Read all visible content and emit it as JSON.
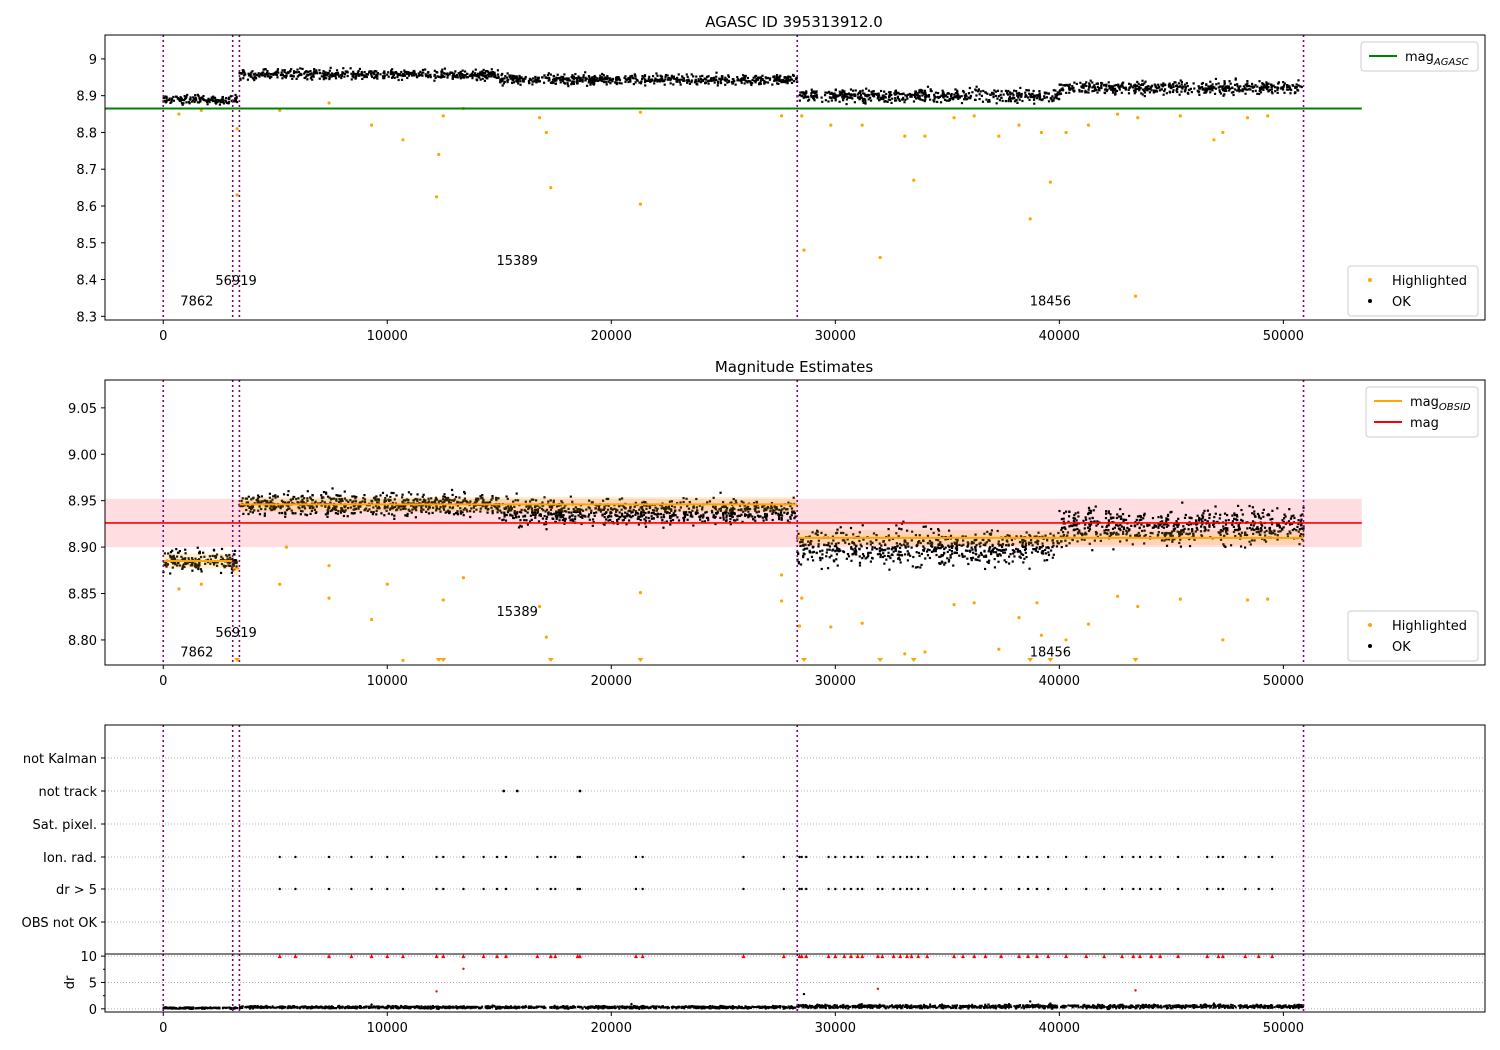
{
  "chart_data": [
    {
      "id": "top",
      "type": "scatter",
      "title": "AGASC ID 395313912.0",
      "xlim": [
        -2600,
        59000
      ],
      "ylim": [
        8.29,
        9.065
      ],
      "xticks": [
        0,
        10000,
        20000,
        30000,
        40000,
        50000
      ],
      "yticks": [
        8.3,
        8.4,
        8.5,
        8.6,
        8.7,
        8.8,
        8.9,
        9.0
      ],
      "grid": false,
      "obsid_boundaries": [
        0,
        3100,
        3400,
        28300,
        50900
      ],
      "obsid_labels": [
        {
          "text": "7862",
          "x": 1500,
          "y": 8.33
        },
        {
          "text": "56919",
          "x": 3250,
          "y": 8.385
        },
        {
          "text": "15389",
          "x": 15800,
          "y": 8.44
        },
        {
          "text": "18456",
          "x": 39600,
          "y": 8.33
        }
      ],
      "hlines": [
        {
          "name": "mag_AGASC",
          "y": 8.865,
          "x": [
            -2600,
            53500
          ],
          "color": "#008000"
        }
      ],
      "ok_segments": [
        {
          "x": [
            0,
            3300
          ],
          "center": 8.889,
          "spread": 0.012
        },
        {
          "x": [
            3400,
            15000
          ],
          "center": 8.958,
          "spread": 0.014
        },
        {
          "x": [
            15000,
            28300
          ],
          "center": 8.944,
          "spread": 0.014
        },
        {
          "x": [
            28300,
            40000
          ],
          "center": 8.9,
          "spread": 0.018
        },
        {
          "x": [
            40000,
            50900
          ],
          "center": 8.922,
          "spread": 0.018
        }
      ],
      "highlighted_points": [
        [
          700,
          8.85
        ],
        [
          1700,
          8.86
        ],
        [
          3300,
          8.81
        ],
        [
          3300,
          8.63
        ],
        [
          5200,
          8.86
        ],
        [
          7400,
          8.88
        ],
        [
          9300,
          8.82
        ],
        [
          10700,
          8.78
        ],
        [
          12200,
          8.625
        ],
        [
          12300,
          8.74
        ],
        [
          12500,
          8.845
        ],
        [
          13400,
          8.865
        ],
        [
          17100,
          8.8
        ],
        [
          17300,
          8.65
        ],
        [
          16800,
          8.84
        ],
        [
          21300,
          8.605
        ],
        [
          21300,
          8.855
        ],
        [
          27600,
          8.845
        ],
        [
          28600,
          8.48
        ],
        [
          28500,
          8.845
        ],
        [
          29800,
          8.82
        ],
        [
          31200,
          8.82
        ],
        [
          32000,
          8.46
        ],
        [
          33100,
          8.79
        ],
        [
          33500,
          8.67
        ],
        [
          34000,
          8.79
        ],
        [
          35300,
          8.84
        ],
        [
          36200,
          8.845
        ],
        [
          37300,
          8.79
        ],
        [
          38200,
          8.82
        ],
        [
          38700,
          8.565
        ],
        [
          39200,
          8.8
        ],
        [
          39600,
          8.665
        ],
        [
          40300,
          8.8
        ],
        [
          41300,
          8.82
        ],
        [
          42600,
          8.85
        ],
        [
          43400,
          8.355
        ],
        [
          43500,
          8.84
        ],
        [
          45400,
          8.845
        ],
        [
          46900,
          8.78
        ],
        [
          47300,
          8.8
        ],
        [
          48400,
          8.84
        ],
        [
          49300,
          8.845
        ]
      ],
      "legends": [
        {
          "entries": [
            {
              "label": "mag",
              "sub": "AGASC",
              "type": "line",
              "color": "#008000"
            }
          ],
          "loc": "upper right"
        },
        {
          "entries": [
            {
              "label": "Highlighted",
              "type": "dot",
              "color": "#ffa500"
            },
            {
              "label": "OK",
              "type": "dot",
              "color": "#000000"
            }
          ],
          "loc": "lower right"
        }
      ]
    },
    {
      "id": "mid",
      "type": "scatter",
      "title": "Magnitude Estimates",
      "xlim": [
        -2600,
        59000
      ],
      "ylim": [
        8.773,
        9.08
      ],
      "xticks": [
        0,
        10000,
        20000,
        30000,
        40000,
        50000
      ],
      "yticks": [
        8.8,
        8.85,
        8.9,
        8.95,
        9.0,
        9.05
      ],
      "ytick_labels": [
        "8.80",
        "8.85",
        "8.90",
        "8.95",
        "9.00",
        "9.05"
      ],
      "grid": false,
      "obsid_boundaries": [
        0,
        3100,
        3400,
        28300,
        50900
      ],
      "obsid_labels": [
        {
          "text": "7862",
          "x": 1500,
          "y": 8.782
        },
        {
          "text": "56919",
          "x": 3250,
          "y": 8.803
        },
        {
          "text": "15389",
          "x": 15800,
          "y": 8.826
        },
        {
          "text": "18456",
          "x": 39600,
          "y": 8.782
        }
      ],
      "mag_band": {
        "x": [
          -2600,
          53500
        ],
        "y": [
          8.9,
          8.952
        ],
        "color": "#ffdde0"
      },
      "hlines": [
        {
          "name": "mag",
          "y": 8.926,
          "x": [
            -2600,
            53500
          ],
          "color": "#ff0000"
        }
      ],
      "obsid_mags": [
        {
          "x": [
            0,
            3100
          ],
          "y": 8.885
        },
        {
          "x": [
            3100,
            3400
          ],
          "y": 8.877
        },
        {
          "x": [
            3400,
            15000
          ],
          "y": 8.946
        },
        {
          "x": [
            15000,
            28300
          ],
          "y": 8.946
        },
        {
          "x": [
            28300,
            50900
          ],
          "y": 8.91
        }
      ],
      "ok_segments": [
        {
          "x": [
            0,
            3300
          ],
          "center": 8.885,
          "spread": 0.012
        },
        {
          "x": [
            3400,
            15000
          ],
          "center": 8.946,
          "spread": 0.012
        },
        {
          "x": [
            15000,
            28300
          ],
          "center": 8.938,
          "spread": 0.014
        },
        {
          "x": [
            28300,
            40000
          ],
          "center": 8.9,
          "spread": 0.02
        },
        {
          "x": [
            40000,
            50900
          ],
          "center": 8.922,
          "spread": 0.02
        }
      ],
      "highlighted_points": [
        [
          700,
          8.855
        ],
        [
          1700,
          8.86
        ],
        [
          5200,
          8.86
        ],
        [
          5500,
          8.9
        ],
        [
          7400,
          8.88
        ],
        [
          7400,
          8.845
        ],
        [
          9300,
          8.822
        ],
        [
          10700,
          8.778
        ],
        [
          10000,
          8.86
        ],
        [
          12500,
          8.843
        ],
        [
          13400,
          8.867
        ],
        [
          16800,
          8.836
        ],
        [
          17100,
          8.803
        ],
        [
          21300,
          8.851
        ],
        [
          27600,
          8.87
        ],
        [
          27600,
          8.842
        ],
        [
          28500,
          8.845
        ],
        [
          28400,
          8.815
        ],
        [
          29800,
          8.814
        ],
        [
          31200,
          8.818
        ],
        [
          33100,
          8.785
        ],
        [
          34000,
          8.787
        ],
        [
          35300,
          8.838
        ],
        [
          36200,
          8.84
        ],
        [
          37300,
          8.79
        ],
        [
          38200,
          8.824
        ],
        [
          39200,
          8.805
        ],
        [
          39000,
          8.84
        ],
        [
          40300,
          8.8
        ],
        [
          41300,
          8.817
        ],
        [
          42600,
          8.847
        ],
        [
          43500,
          8.836
        ],
        [
          45400,
          8.844
        ],
        [
          47300,
          8.8
        ],
        [
          48400,
          8.843
        ],
        [
          49300,
          8.844
        ]
      ],
      "offscale_markers": [
        3300,
        12300,
        12500,
        17300,
        21300,
        28600,
        32000,
        33500,
        38700,
        39600,
        43400
      ],
      "legends": [
        {
          "entries": [
            {
              "label": "mag",
              "sub": "OBSID",
              "type": "line",
              "color": "#ffa500"
            },
            {
              "label": "mag",
              "type": "line",
              "color": "#ff0000"
            }
          ],
          "loc": "upper right"
        },
        {
          "entries": [
            {
              "label": "Highlighted",
              "type": "dot",
              "color": "#ffa500"
            },
            {
              "label": "OK",
              "type": "dot",
              "color": "#000000"
            }
          ],
          "loc": "lower right"
        }
      ]
    },
    {
      "id": "flags",
      "type": "scatter",
      "xlim": [
        -2600,
        59000
      ],
      "categories": [
        "not Kalman",
        "not track",
        "Sat. pixel.",
        "Ion. rad.",
        "dr > 5",
        "OBS not OK"
      ],
      "grid": true,
      "obsid_boundaries": [
        0,
        3100,
        3400,
        28300,
        50900
      ],
      "not_track_x": [
        15200,
        15800,
        18600
      ],
      "flag_x": [
        5200,
        5900,
        7400,
        8400,
        9300,
        10000,
        10700,
        12200,
        12500,
        13400,
        14300,
        14900,
        15300,
        16700,
        17300,
        17500,
        18500,
        18600,
        21100,
        21400,
        25900,
        27700,
        28400,
        28500,
        28700,
        29700,
        30000,
        30400,
        30700,
        31000,
        31200,
        31900,
        32100,
        32600,
        32900,
        33200,
        33400,
        33700,
        34100,
        35300,
        35700,
        36200,
        36700,
        37400,
        38200,
        38600,
        39000,
        39500,
        40300,
        41200,
        42000,
        42800,
        43300,
        43600,
        44100,
        44500,
        45300,
        46600,
        47100,
        47300,
        48300,
        48900,
        49500
      ]
    },
    {
      "id": "dr",
      "type": "scatter",
      "xlim": [
        -2600,
        59000
      ],
      "ylim": [
        -0.6,
        10.4
      ],
      "yticks": [
        0,
        5,
        10
      ],
      "ylabel": "dr",
      "xticks": [
        0,
        10000,
        20000,
        30000,
        40000,
        50000
      ],
      "grid": true,
      "obsid_boundaries": [
        0,
        3100,
        3400,
        28300,
        50900
      ],
      "outliers": [
        [
          12200,
          3.3
        ],
        [
          13400,
          7.6
        ],
        [
          20900,
          0.9
        ],
        [
          28600,
          2.8
        ],
        [
          31900,
          3.8
        ],
        [
          43400,
          3.5
        ],
        [
          38700,
          1.4
        ],
        [
          39600,
          1.0
        ],
        [
          46900,
          1.0
        ],
        [
          9300,
          0.8
        ]
      ],
      "ok_segments": [
        {
          "x": [
            0,
            3300
          ],
          "center": 0.15,
          "spread": 0.15
        },
        {
          "x": [
            3400,
            28300
          ],
          "center": 0.3,
          "spread": 0.25
        },
        {
          "x": [
            28300,
            50900
          ],
          "center": 0.45,
          "spread": 0.35
        }
      ],
      "clipped_value": 10
    }
  ]
}
